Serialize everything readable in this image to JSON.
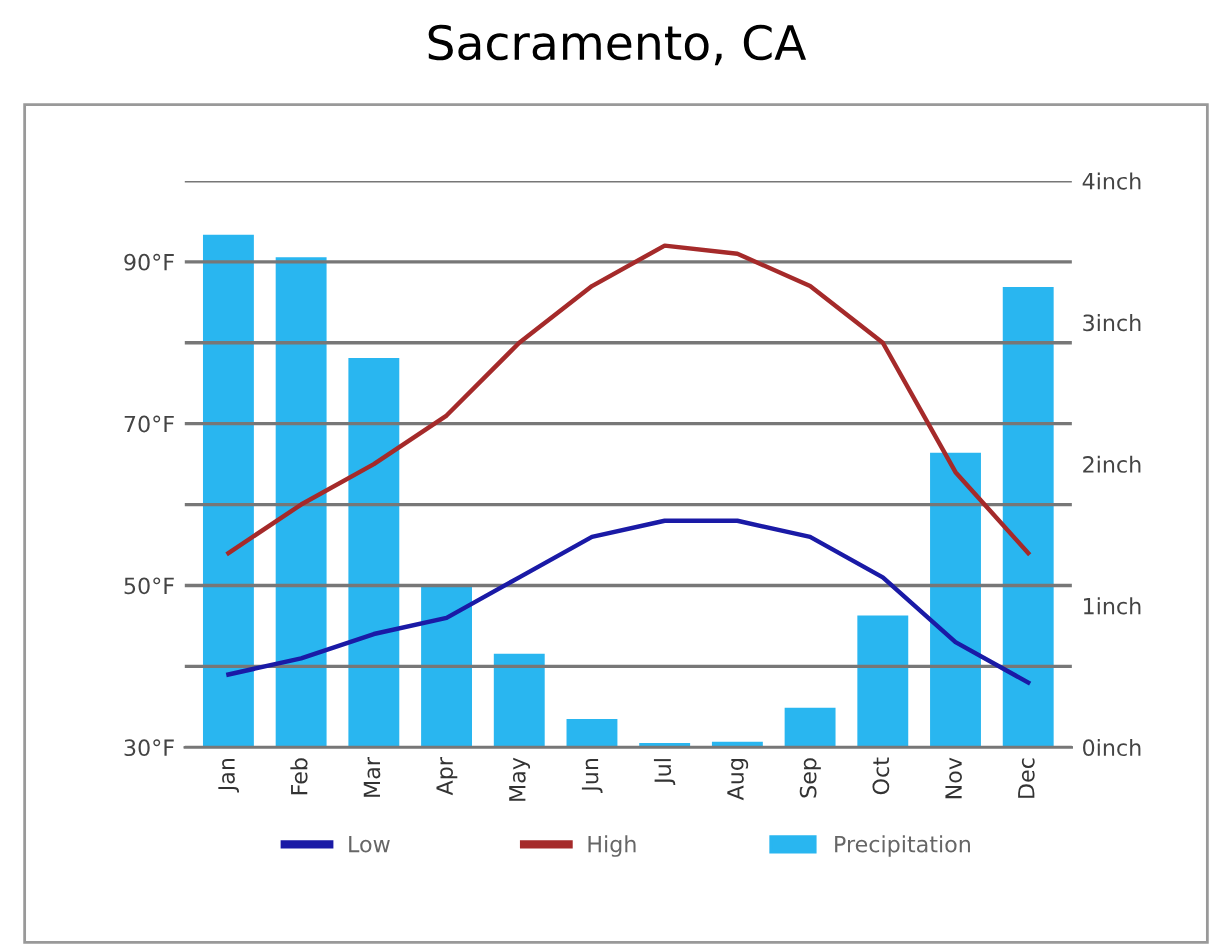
{
  "chart_data": {
    "type": "line",
    "title": "Sacramento, CA",
    "categories": [
      "Jan",
      "Feb",
      "Mar",
      "Apr",
      "May",
      "Jun",
      "Jul",
      "Aug",
      "Sep",
      "Oct",
      "Nov",
      "Dec"
    ],
    "series": [
      {
        "name": "Low",
        "color": "#1a1aa6",
        "values": [
          39,
          41,
          44,
          46,
          51,
          56,
          58,
          58,
          56,
          51,
          43,
          38
        ]
      },
      {
        "name": "High",
        "color": "#a52a2a",
        "values": [
          54,
          60,
          65,
          71,
          80,
          87,
          92,
          91,
          87,
          80,
          64,
          54
        ]
      },
      {
        "name": "Precipitation",
        "type": "bar",
        "axis": "y2",
        "color": "#29b6f0",
        "values": [
          3.62,
          3.46,
          2.75,
          1.14,
          0.66,
          0.2,
          0.03,
          0.04,
          0.28,
          0.93,
          2.08,
          3.25
        ]
      }
    ],
    "ylim": [
      30,
      100
    ],
    "yticks": [
      {
        "value": 30,
        "label": "30°F"
      },
      {
        "value": 40,
        "label": null
      },
      {
        "value": 50,
        "label": "50°F"
      },
      {
        "value": 60,
        "label": null
      },
      {
        "value": 70,
        "label": "70°F"
      },
      {
        "value": 80,
        "label": null
      },
      {
        "value": 90,
        "label": "90°F"
      },
      {
        "value": 100,
        "label": null
      }
    ],
    "y2lim": [
      0,
      4
    ],
    "y2ticks": [
      {
        "value": 0,
        "label": "0inch"
      },
      {
        "value": 1,
        "label": "1inch"
      },
      {
        "value": 2,
        "label": "2inch"
      },
      {
        "value": 3,
        "label": "3inch"
      },
      {
        "value": 4,
        "label": "4inch"
      }
    ],
    "grid": "y",
    "legend": "bottom",
    "marker": "none",
    "line_style": "solid"
  }
}
